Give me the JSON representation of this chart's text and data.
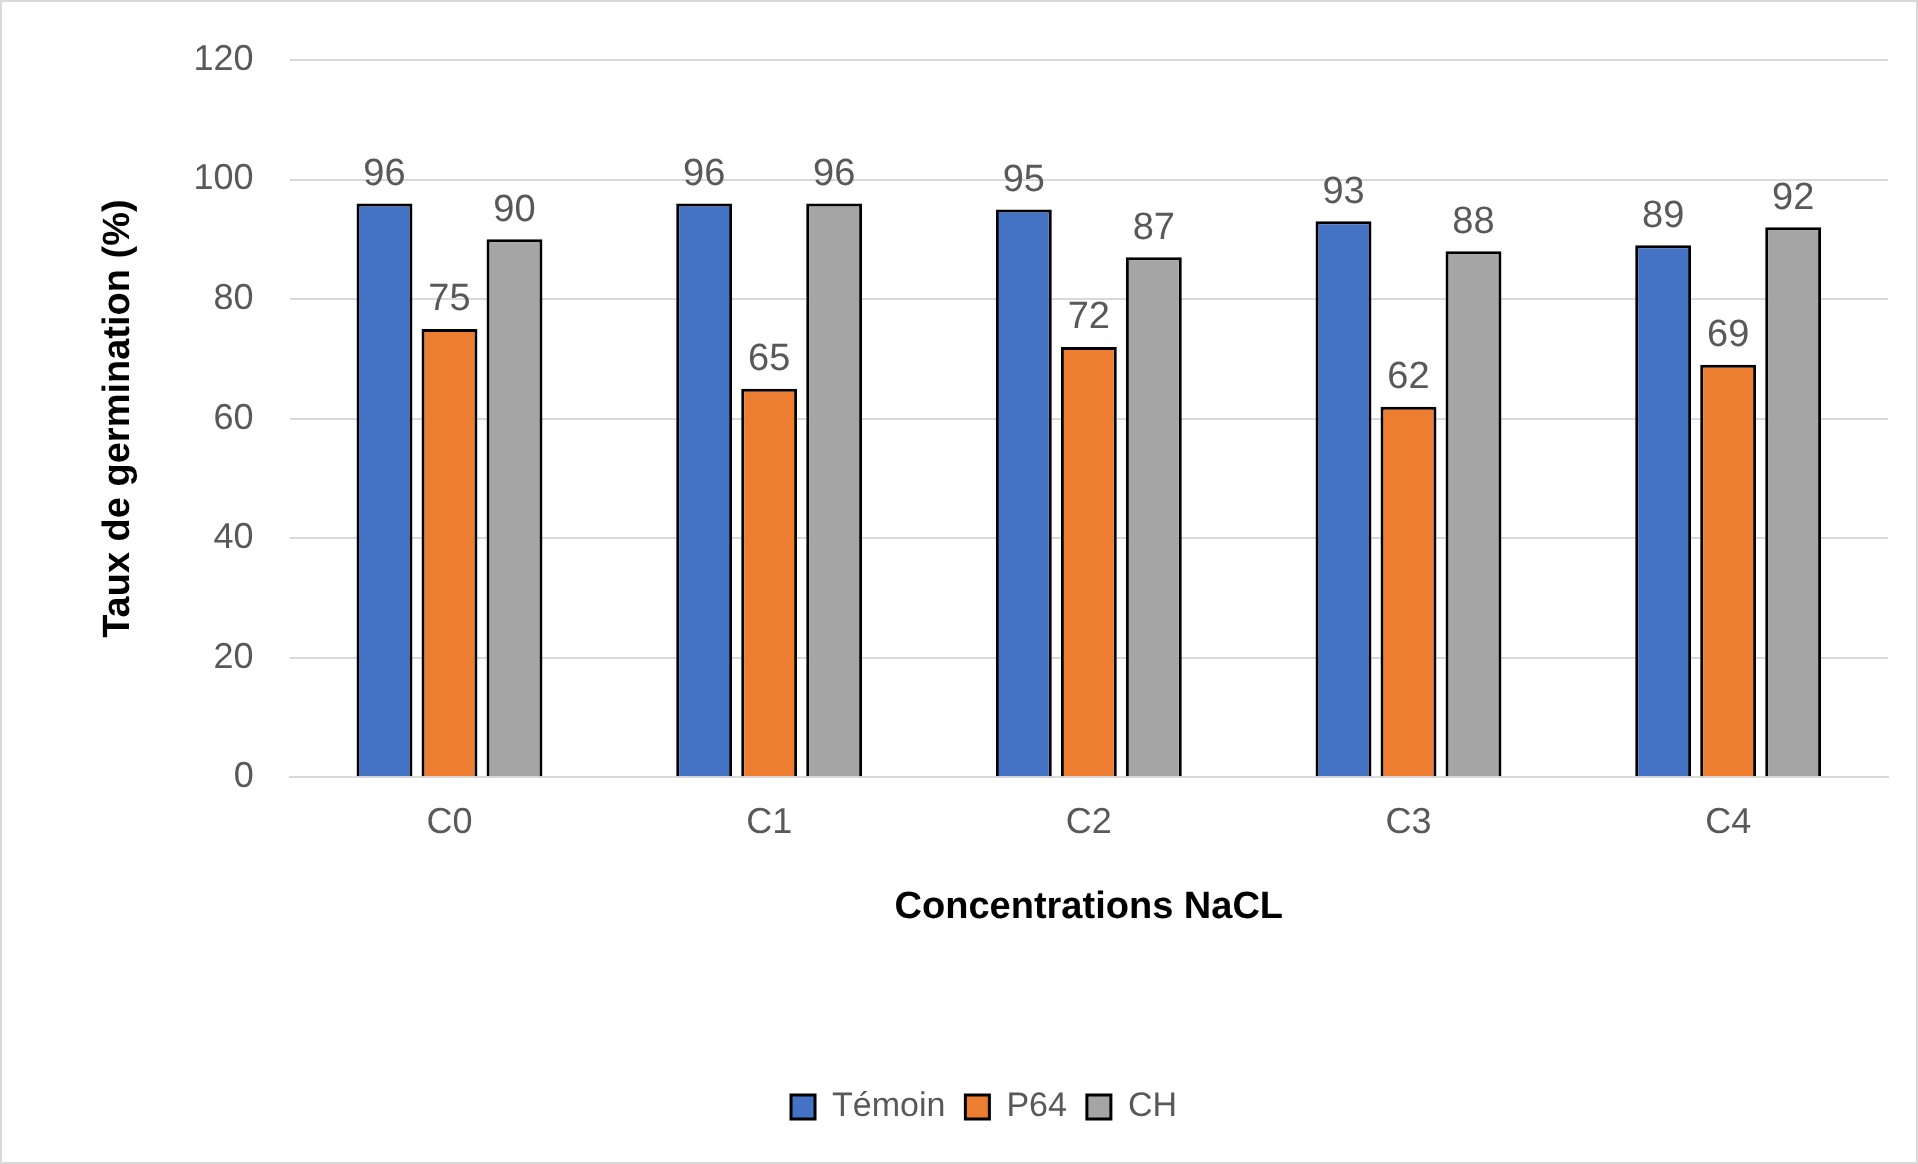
{
  "chart_data": {
    "type": "bar",
    "xlabel": "Concentrations NaCL",
    "ylabel": "Taux de germination (%)",
    "categories": [
      "C0",
      "C1",
      "C2",
      "C3",
      "C4"
    ],
    "series": [
      {
        "name": "Témoin",
        "color": "#4472c4",
        "values": [
          96,
          96,
          95,
          93,
          89
        ]
      },
      {
        "name": "P64",
        "color": "#ed7d31",
        "values": [
          75,
          65,
          72,
          62,
          69
        ]
      },
      {
        "name": "CH",
        "color": "#a5a5a5",
        "values": [
          90,
          96,
          87,
          88,
          92
        ]
      }
    ],
    "ylim": [
      0,
      120
    ],
    "yticks": [
      0,
      20,
      40,
      60,
      80,
      100,
      120
    ],
    "grid": "y",
    "legend": "bottom",
    "data_labels": true
  }
}
